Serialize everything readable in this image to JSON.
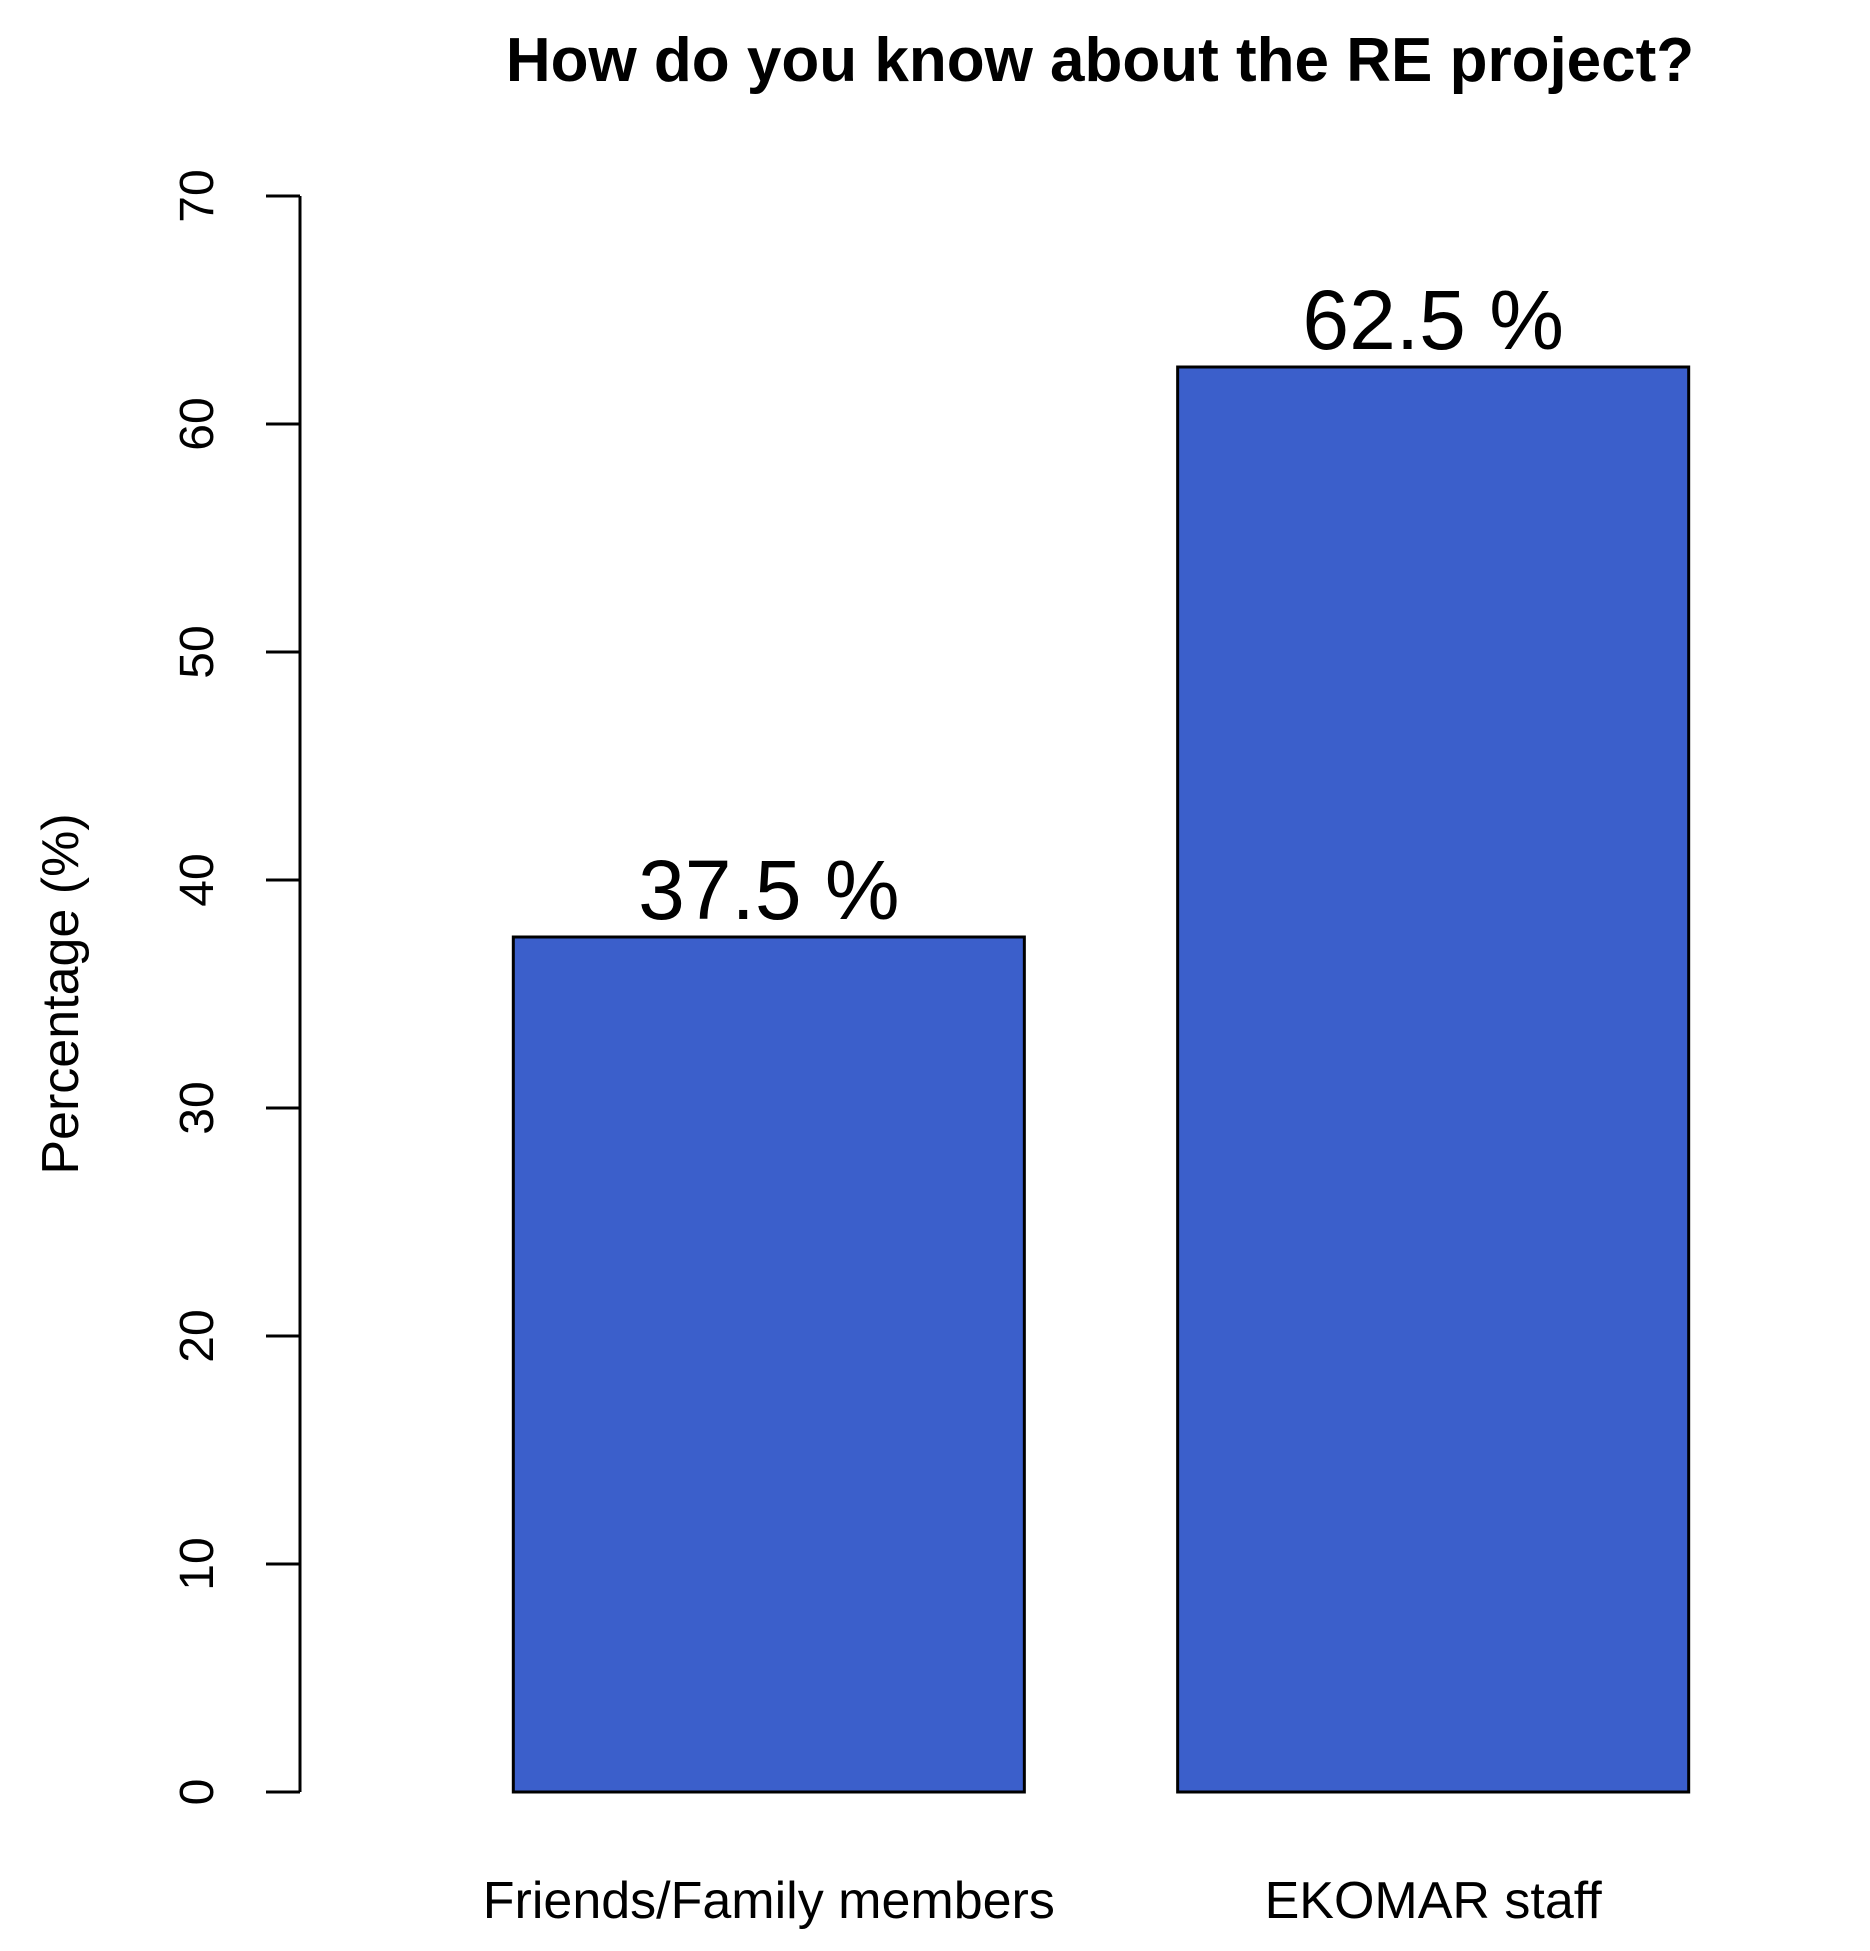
{
  "chart_data": {
    "type": "bar",
    "title": "How do you know about the RE project?",
    "xlabel": "",
    "ylabel": "Percentage (%)",
    "ylim": [
      0,
      70
    ],
    "yticks": [
      0,
      10,
      20,
      30,
      40,
      50,
      60,
      70
    ],
    "categories": [
      "Friends/Family members",
      "EKOMAR staff"
    ],
    "values": [
      37.5,
      62.5
    ],
    "data_labels": [
      "37.5 %",
      "62.5 %"
    ],
    "bar_color": "#3b5fcb",
    "grid": false,
    "legend": "none"
  }
}
